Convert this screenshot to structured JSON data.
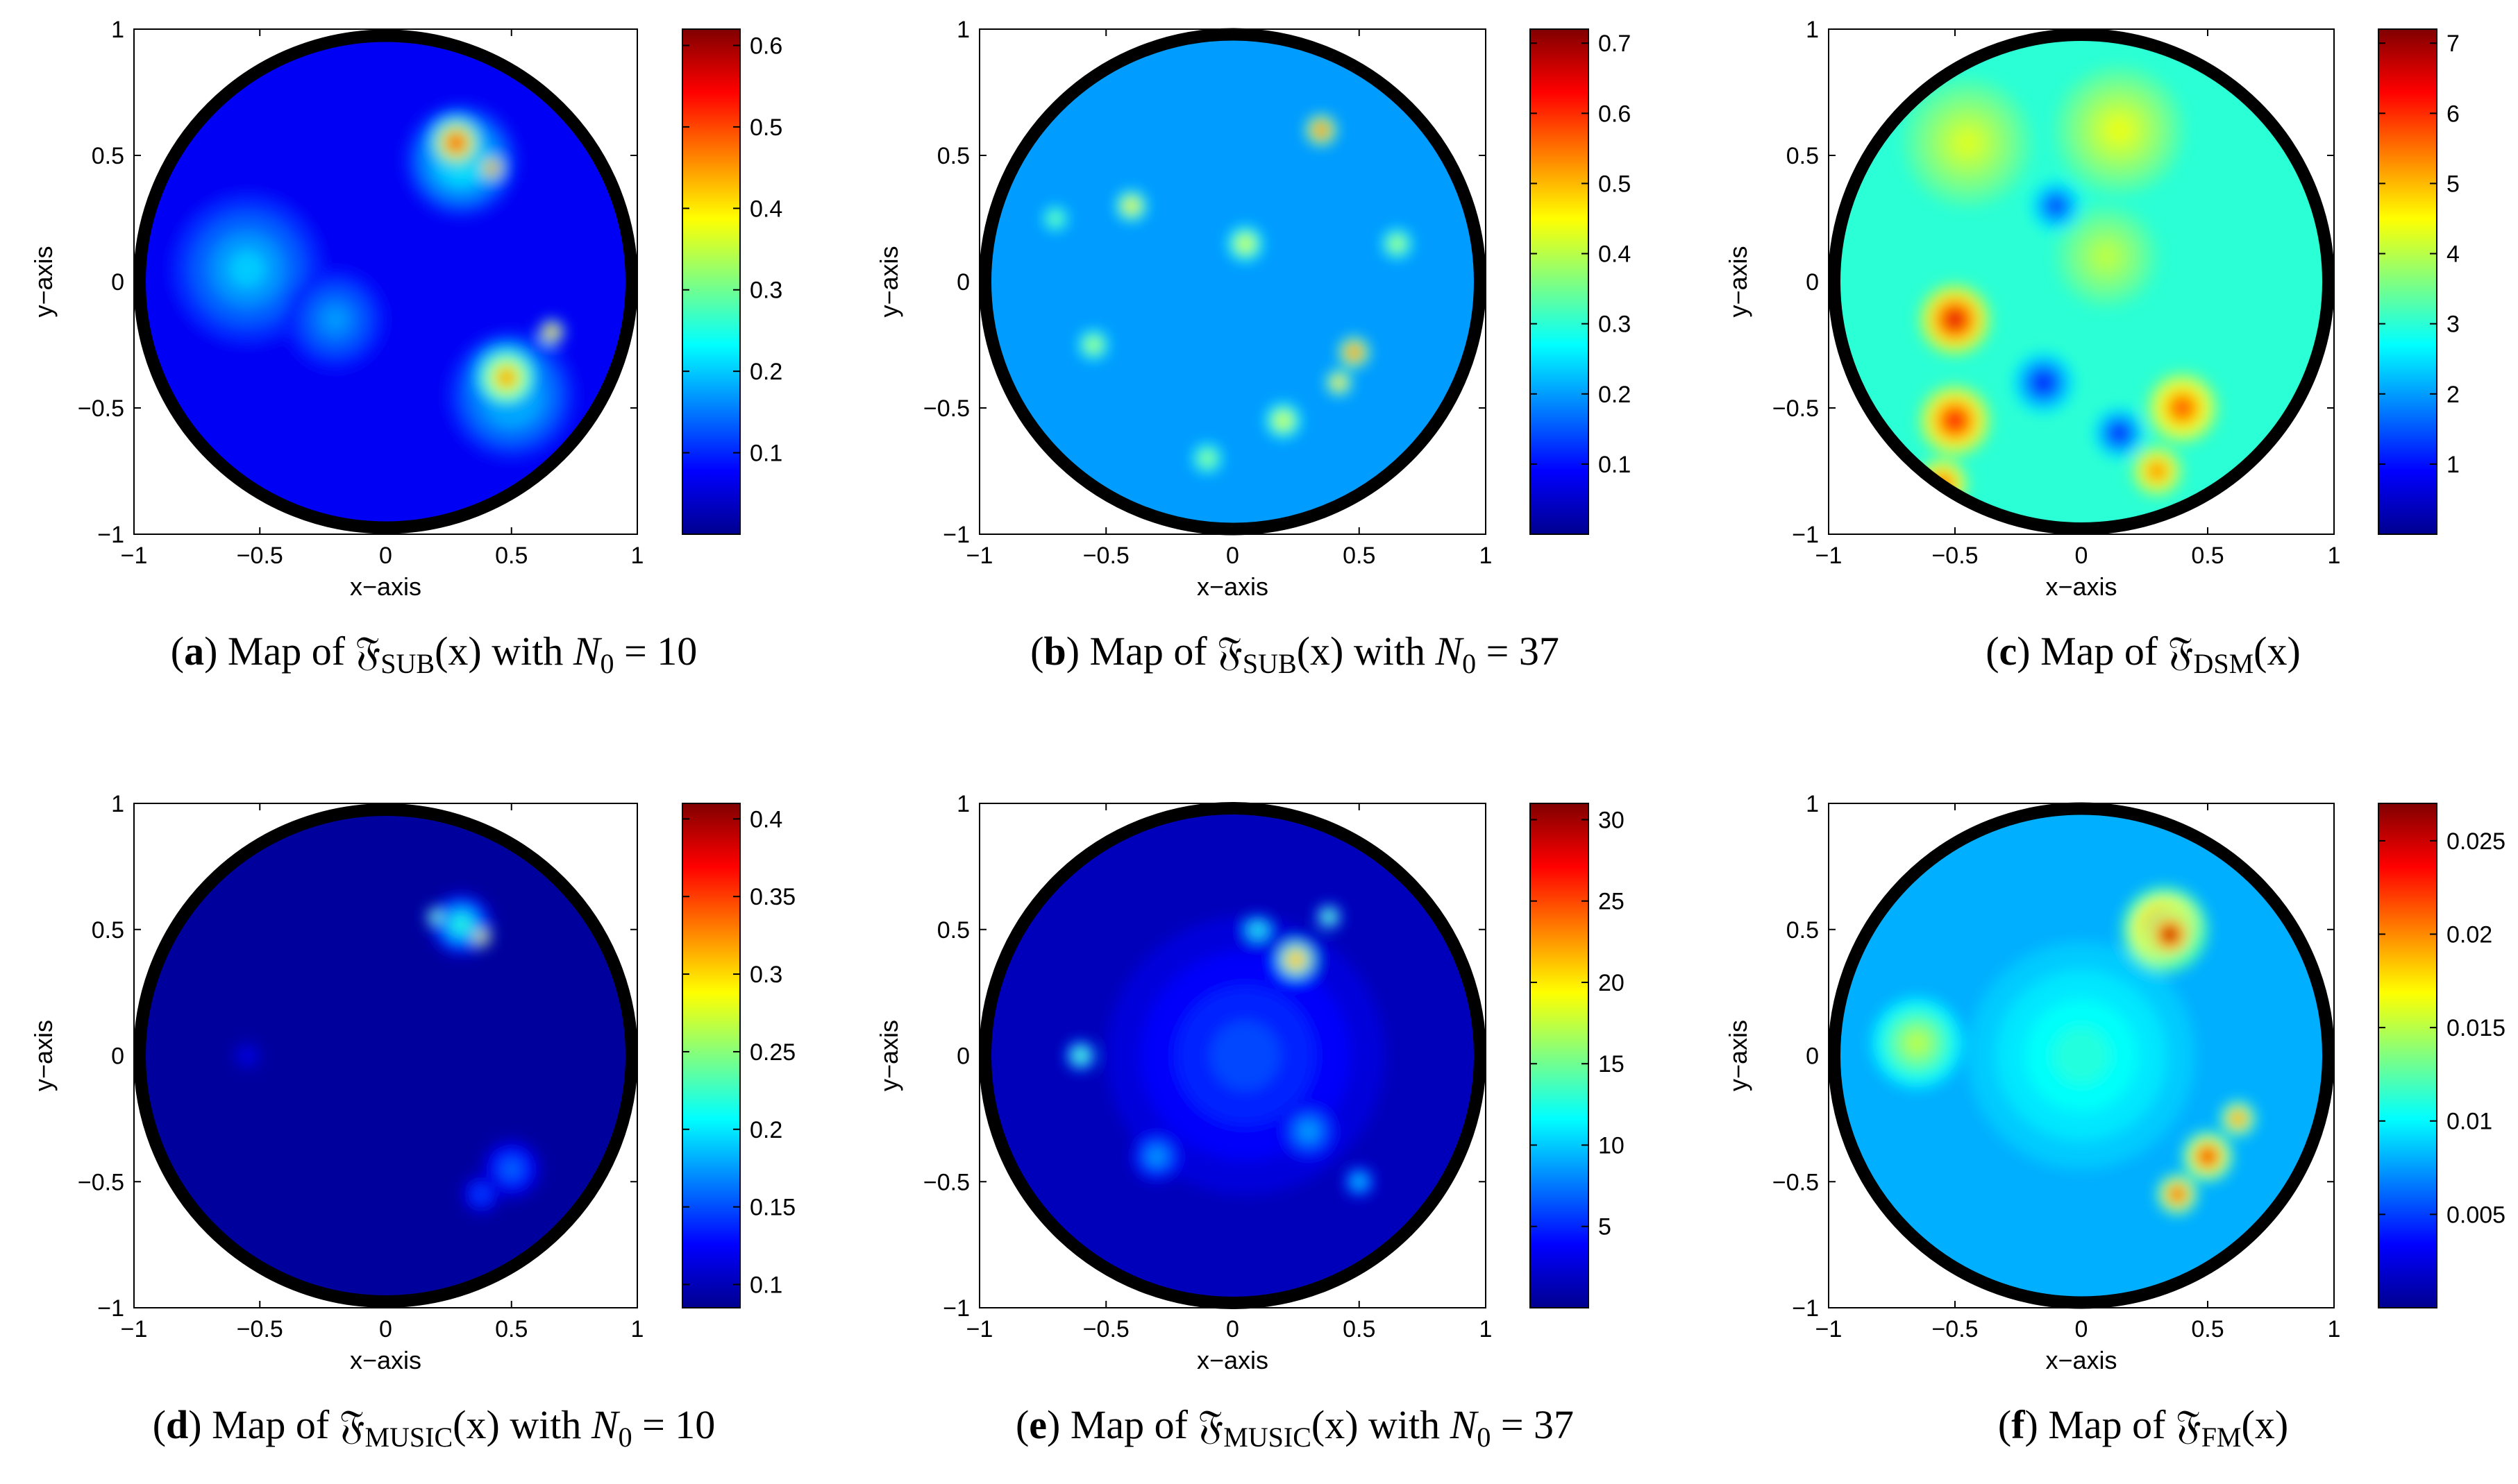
{
  "colormap": [
    "#00008f",
    "#0000ff",
    "#0080ff",
    "#00ffff",
    "#80ff80",
    "#ffff00",
    "#ff8000",
    "#ff0000",
    "#800000"
  ],
  "chart_data": [
    {
      "type": "heatmap",
      "xlabel": "x−axis",
      "ylabel": "y−axis",
      "xlim": [
        -1,
        1
      ],
      "ylim": [
        -1,
        1
      ],
      "xticks": [
        "−1",
        "−0.5",
        "0",
        "0.5",
        "1"
      ],
      "yticks": [
        "−1",
        "−0.5",
        "0",
        "0.5",
        "1"
      ],
      "colorbar_ticks": [
        0.1,
        0.2,
        0.3,
        0.4,
        0.5,
        0.6
      ],
      "colorbar_range": [
        0,
        0.62
      ],
      "caption": {
        "label": "a",
        "pre": "Map of ",
        "func": "𝔉",
        "sub": "SUB",
        "post": "(x) with ",
        "var": "N",
        "varsub": "0",
        "eq": " = 10"
      },
      "background_level": 0.07,
      "regions": [
        {
          "x": 0.28,
          "y": 0.55,
          "r": 0.11,
          "value": 0.55
        },
        {
          "x": 0.42,
          "y": 0.45,
          "r": 0.05,
          "value": 0.6
        },
        {
          "x": 0.3,
          "y": 0.48,
          "r": 0.22,
          "value": 0.25
        },
        {
          "x": 0.48,
          "y": -0.38,
          "r": 0.14,
          "value": 0.45
        },
        {
          "x": 0.66,
          "y": -0.2,
          "r": 0.05,
          "value": 0.55
        },
        {
          "x": 0.5,
          "y": -0.45,
          "r": 0.25,
          "value": 0.22
        },
        {
          "x": -0.55,
          "y": 0.05,
          "r": 0.3,
          "value": 0.2
        },
        {
          "x": -0.2,
          "y": -0.15,
          "r": 0.2,
          "value": 0.17
        }
      ]
    },
    {
      "type": "heatmap",
      "xlabel": "x−axis",
      "ylabel": "y−axis",
      "xlim": [
        -1,
        1
      ],
      "ylim": [
        -1,
        1
      ],
      "xticks": [
        "−1",
        "−0.5",
        "0",
        "0.5",
        "1"
      ],
      "yticks": [
        "−1",
        "−0.5",
        "0",
        "0.5",
        "1"
      ],
      "colorbar_ticks": [
        0.1,
        0.2,
        0.3,
        0.4,
        0.5,
        0.6,
        0.7
      ],
      "colorbar_range": [
        0,
        0.72
      ],
      "caption": {
        "label": "b",
        "pre": "Map of ",
        "func": "𝔉",
        "sub": "SUB",
        "post": "(x) with ",
        "var": "N",
        "varsub": "0",
        "eq": " = 37"
      },
      "background_level": 0.2,
      "regions": [
        {
          "x": 0.35,
          "y": 0.6,
          "r": 0.06,
          "value": 0.68
        },
        {
          "x": 0.48,
          "y": -0.28,
          "r": 0.06,
          "value": 0.66
        },
        {
          "x": 0.42,
          "y": -0.4,
          "r": 0.05,
          "value": 0.55
        },
        {
          "x": -0.4,
          "y": 0.3,
          "r": 0.06,
          "value": 0.5
        },
        {
          "x": 0.05,
          "y": 0.15,
          "r": 0.07,
          "value": 0.45
        },
        {
          "x": -0.55,
          "y": -0.25,
          "r": 0.06,
          "value": 0.42
        },
        {
          "x": 0.2,
          "y": -0.55,
          "r": 0.07,
          "value": 0.45
        },
        {
          "x": -0.1,
          "y": -0.7,
          "r": 0.06,
          "value": 0.4
        },
        {
          "x": 0.65,
          "y": 0.15,
          "r": 0.06,
          "value": 0.42
        },
        {
          "x": -0.7,
          "y": 0.25,
          "r": 0.05,
          "value": 0.38
        }
      ]
    },
    {
      "type": "heatmap",
      "xlabel": "x−axis",
      "ylabel": "y−axis",
      "xlim": [
        -1,
        1
      ],
      "ylim": [
        -1,
        1
      ],
      "xticks": [
        "−1",
        "−0.5",
        "0",
        "0.5",
        "1"
      ],
      "yticks": [
        "−1",
        "−0.5",
        "0",
        "0.5",
        "1"
      ],
      "colorbar_ticks": [
        1,
        2,
        3,
        4,
        5,
        6,
        7
      ],
      "colorbar_range": [
        0,
        7.2
      ],
      "caption": {
        "label": "c",
        "pre": "Map of ",
        "func": "𝔉",
        "sub": "DSM",
        "post": "(x)",
        "var": "",
        "varsub": "",
        "eq": ""
      },
      "background_level": 3.0,
      "regions": [
        {
          "x": -0.5,
          "y": -0.15,
          "r": 0.14,
          "value": 6.5
        },
        {
          "x": -0.5,
          "y": -0.55,
          "r": 0.14,
          "value": 6.3
        },
        {
          "x": -0.55,
          "y": -0.8,
          "r": 0.1,
          "value": 5.8
        },
        {
          "x": 0.4,
          "y": -0.5,
          "r": 0.14,
          "value": 5.8
        },
        {
          "x": 0.3,
          "y": -0.75,
          "r": 0.1,
          "value": 5.5
        },
        {
          "x": -0.45,
          "y": 0.55,
          "r": 0.25,
          "value": 4.2
        },
        {
          "x": 0.15,
          "y": 0.6,
          "r": 0.25,
          "value": 4.3
        },
        {
          "x": 0.1,
          "y": 0.1,
          "r": 0.2,
          "value": 4.0
        },
        {
          "x": -0.15,
          "y": -0.4,
          "r": 0.12,
          "value": 1.0
        },
        {
          "x": 0.15,
          "y": -0.6,
          "r": 0.1,
          "value": 1.0
        },
        {
          "x": -0.1,
          "y": 0.3,
          "r": 0.1,
          "value": 1.3
        }
      ]
    },
    {
      "type": "heatmap",
      "xlabel": "x−axis",
      "ylabel": "y−axis",
      "xlim": [
        -1,
        1
      ],
      "ylim": [
        -1,
        1
      ],
      "xticks": [
        "−1",
        "−0.5",
        "0",
        "0.5",
        "1"
      ],
      "yticks": [
        "−1",
        "−0.5",
        "0",
        "0.5",
        "1"
      ],
      "colorbar_ticks": [
        0.1,
        0.15,
        0.2,
        0.25,
        0.3,
        0.35,
        0.4
      ],
      "colorbar_range": [
        0.085,
        0.41
      ],
      "caption": {
        "label": "d",
        "pre": "Map of ",
        "func": "𝔉",
        "sub": "MUSIC",
        "post": "(x) with ",
        "var": "N",
        "varsub": "0",
        "eq": " = 10"
      },
      "background_level": 0.09,
      "regions": [
        {
          "x": 0.3,
          "y": 0.52,
          "r": 0.12,
          "value": 0.22
        },
        {
          "x": 0.38,
          "y": 0.47,
          "r": 0.04,
          "value": 0.38
        },
        {
          "x": 0.2,
          "y": 0.55,
          "r": 0.04,
          "value": 0.28
        },
        {
          "x": 0.5,
          "y": -0.45,
          "r": 0.12,
          "value": 0.16
        },
        {
          "x": 0.38,
          "y": -0.55,
          "r": 0.08,
          "value": 0.15
        },
        {
          "x": -0.55,
          "y": 0.0,
          "r": 0.06,
          "value": 0.12
        }
      ]
    },
    {
      "type": "heatmap",
      "xlabel": "x−axis",
      "ylabel": "y−axis",
      "xlim": [
        -1,
        1
      ],
      "ylim": [
        -1,
        1
      ],
      "xticks": [
        "−1",
        "−0.5",
        "0",
        "0.5",
        "1"
      ],
      "yticks": [
        "−1",
        "−0.5",
        "0",
        "0.5",
        "1"
      ],
      "colorbar_ticks": [
        5,
        10,
        15,
        20,
        25,
        30
      ],
      "colorbar_range": [
        0,
        31
      ],
      "caption": {
        "label": "e",
        "pre": "Map of ",
        "func": "𝔉",
        "sub": "MUSIC",
        "post": "(x) with ",
        "var": "N",
        "varsub": "0",
        "eq": " = 37"
      },
      "background_level": 1.5,
      "regions": [
        {
          "x": 0.25,
          "y": 0.38,
          "r": 0.08,
          "value": 26
        },
        {
          "x": 0.38,
          "y": 0.55,
          "r": 0.05,
          "value": 17
        },
        {
          "x": 0.1,
          "y": 0.5,
          "r": 0.06,
          "value": 14
        },
        {
          "x": -0.6,
          "y": 0.0,
          "r": 0.06,
          "value": 16
        },
        {
          "x": 0.05,
          "y": 0.0,
          "r": 0.55,
          "value": 6
        },
        {
          "x": 0.3,
          "y": -0.3,
          "r": 0.12,
          "value": 9
        },
        {
          "x": -0.3,
          "y": -0.4,
          "r": 0.1,
          "value": 9
        },
        {
          "x": 0.5,
          "y": -0.5,
          "r": 0.06,
          "value": 11
        }
      ]
    },
    {
      "type": "heatmap",
      "xlabel": "x−axis",
      "ylabel": "y−axis",
      "xlim": [
        -1,
        1
      ],
      "ylim": [
        -1,
        1
      ],
      "xticks": [
        "−1",
        "−0.5",
        "0",
        "0.5",
        "1"
      ],
      "yticks": [
        "−1",
        "−0.5",
        "0",
        "0.5",
        "1"
      ],
      "colorbar_ticks": [
        0.005,
        0.01,
        0.015,
        0.02,
        0.025
      ],
      "colorbar_range": [
        0,
        0.027
      ],
      "caption": {
        "label": "f",
        "pre": "Map of ",
        "func": "𝔉",
        "sub": "FM",
        "post": "(x)",
        "var": "",
        "varsub": "",
        "eq": ""
      },
      "background_level": 0.008,
      "regions": [
        {
          "x": 0.33,
          "y": 0.5,
          "r": 0.17,
          "value": 0.025
        },
        {
          "x": 0.35,
          "y": 0.48,
          "r": 0.1,
          "value": 0.027
        },
        {
          "x": 0.5,
          "y": -0.4,
          "r": 0.1,
          "value": 0.024
        },
        {
          "x": 0.38,
          "y": -0.55,
          "r": 0.08,
          "value": 0.024
        },
        {
          "x": 0.62,
          "y": -0.25,
          "r": 0.07,
          "value": 0.022
        },
        {
          "x": -0.65,
          "y": 0.05,
          "r": 0.18,
          "value": 0.015
        },
        {
          "x": 0.0,
          "y": 0.0,
          "r": 0.45,
          "value": 0.011
        }
      ]
    }
  ]
}
